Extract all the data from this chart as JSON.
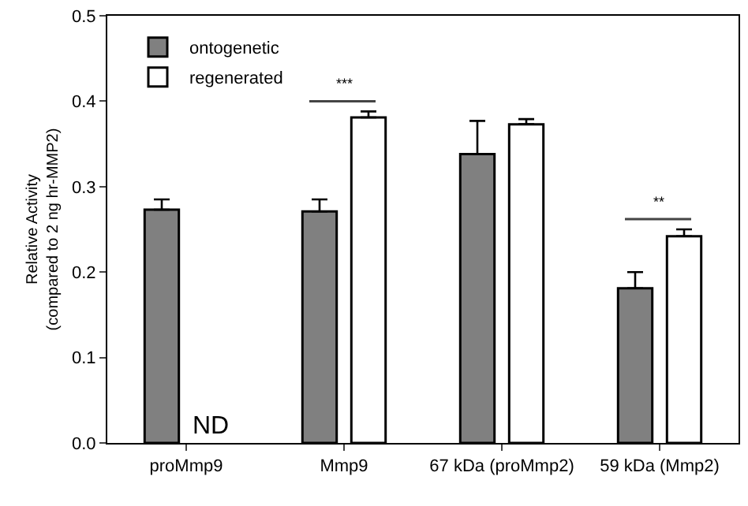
{
  "chart_data": {
    "type": "bar",
    "categories": [
      "proMmp9",
      "Mmp9",
      "67 kDa (proMmp2)",
      "59 kDa (Mmp2)"
    ],
    "ylabel": "Relative Activity\n(compared to 2 ng hr-MMP2)",
    "ylim": [
      0,
      0.5
    ],
    "yticks": [
      {
        "value": 0,
        "label": "0.0"
      },
      0.1,
      0.2,
      0.3,
      0.4,
      0.5
    ],
    "series": [
      {
        "name": "ontogenetic",
        "color": "#808080",
        "values": [
          0.273,
          0.271,
          0.338,
          0.181
        ],
        "errors": [
          [
            0.273,
            0.285
          ],
          [
            0.271,
            0.285
          ],
          [
            0.338,
            0.377
          ],
          [
            0.181,
            0.2
          ]
        ]
      },
      {
        "name": "regenerated",
        "color": "#ffffff",
        "values": [
          null,
          0.381,
          0.373,
          0.242
        ],
        "errors": [
          null,
          [
            0.381,
            0.388
          ],
          [
            0.373,
            0.379
          ],
          [
            0.242,
            0.25
          ]
        ]
      }
    ],
    "annotations": [
      {
        "text": "ND",
        "x": "proMmp9",
        "y": 0
      },
      "***",
      "**"
    ],
    "legend": "top left"
  }
}
